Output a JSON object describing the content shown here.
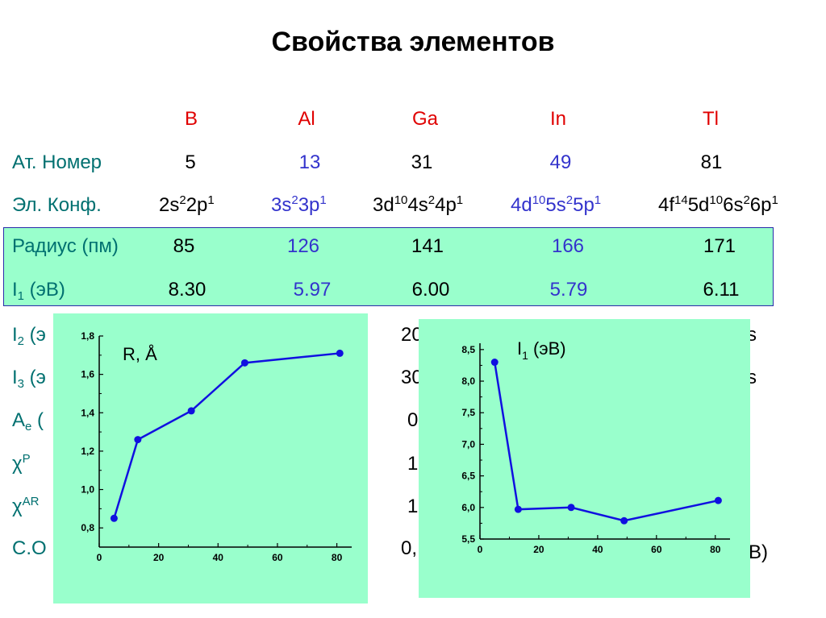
{
  "title": "Свойства элементов",
  "elements": [
    "B",
    "Al",
    "Ga",
    "In",
    "Tl"
  ],
  "rows": {
    "at_number": {
      "label": "Ат. Номер",
      "values": [
        "5",
        "13",
        "31",
        "49",
        "81"
      ]
    },
    "el_conf": {
      "label": "Эл. Конф.",
      "values": [
        [
          [
            "2s",
            ""
          ],
          [
            "2",
            "sup"
          ],
          [
            "2p",
            ""
          ],
          [
            "1",
            "sup"
          ]
        ],
        [
          [
            "3s",
            ""
          ],
          [
            "2",
            "sup"
          ],
          [
            "3p",
            ""
          ],
          [
            "1",
            "sup"
          ]
        ],
        [
          [
            "3d",
            ""
          ],
          [
            "10",
            "sup"
          ],
          [
            "4s",
            ""
          ],
          [
            "2",
            "sup"
          ],
          [
            "4p",
            ""
          ],
          [
            "1",
            "sup"
          ]
        ],
        [
          [
            "4d",
            ""
          ],
          [
            "10",
            "sup"
          ],
          [
            "5s",
            ""
          ],
          [
            "2",
            "sup"
          ],
          [
            "5p",
            ""
          ],
          [
            "1",
            "sup"
          ]
        ],
        [
          [
            "4f",
            ""
          ],
          [
            "14",
            "sup"
          ],
          [
            "5d",
            ""
          ],
          [
            "10",
            "sup"
          ],
          [
            "6s",
            ""
          ],
          [
            "2",
            "sup"
          ],
          [
            "6p",
            ""
          ],
          [
            "1",
            "sup"
          ]
        ]
      ]
    },
    "radius": {
      "label": "Радиус (пм)",
      "values": [
        "85",
        "126",
        "141",
        "166",
        "171"
      ]
    },
    "i1": {
      "label_main": "I",
      "label_sub": "1",
      "label_rest": " (эВ)",
      "values": [
        "8.30",
        "5.97",
        "6.00",
        "5.79",
        "6.11"
      ]
    }
  },
  "partial_rows": [
    {
      "label": "I",
      "sub": "2",
      "rest": " (э",
      "right": "20"
    },
    {
      "label": "I",
      "sub": "3",
      "rest": " (э",
      "right": "30"
    },
    {
      "label": "A",
      "sub": "e",
      "rest": " (",
      "right": "0"
    },
    {
      "label": "χ",
      "sup": "P",
      "rest": "",
      "right": "1"
    },
    {
      "label": "χ",
      "sup": "AR",
      "rest": "",
      "right": "1"
    },
    {
      "label": "С.О",
      "rest": "",
      "right": "0,"
    }
  ],
  "edge_fragments": [
    "s",
    "s",
    "В)"
  ],
  "colors": {
    "header": "#e00000",
    "label": "#007070",
    "accent_column": "#3333cc",
    "highlight": "#99ffcc",
    "plot_line": "#1010e0"
  },
  "chart_data": [
    {
      "type": "line",
      "label": "R, Å",
      "x": [
        5,
        13,
        31,
        49,
        81
      ],
      "y": [
        0.85,
        1.26,
        1.41,
        1.66,
        1.71
      ],
      "xlim": [
        0,
        85
      ],
      "ylim": [
        0.7,
        1.8
      ],
      "xticks": [
        "0",
        "20",
        "40",
        "60",
        "80"
      ],
      "yticks": [
        "0,8",
        "1,0",
        "1,2",
        "1,4",
        "1,6",
        "1,8"
      ],
      "grid": false
    },
    {
      "type": "line",
      "label_main": "I",
      "label_sub": "1",
      "label_rest": " (эВ)",
      "x": [
        5,
        13,
        31,
        49,
        81
      ],
      "y": [
        8.3,
        5.97,
        6.0,
        5.79,
        6.11
      ],
      "xlim": [
        0,
        85
      ],
      "ylim": [
        5.5,
        8.6
      ],
      "xticks": [
        "0",
        "20",
        "40",
        "60",
        "80"
      ],
      "yticks": [
        "5,5",
        "6,0",
        "6,5",
        "7,0",
        "7,5",
        "8,0",
        "8,5"
      ],
      "grid": false
    }
  ]
}
